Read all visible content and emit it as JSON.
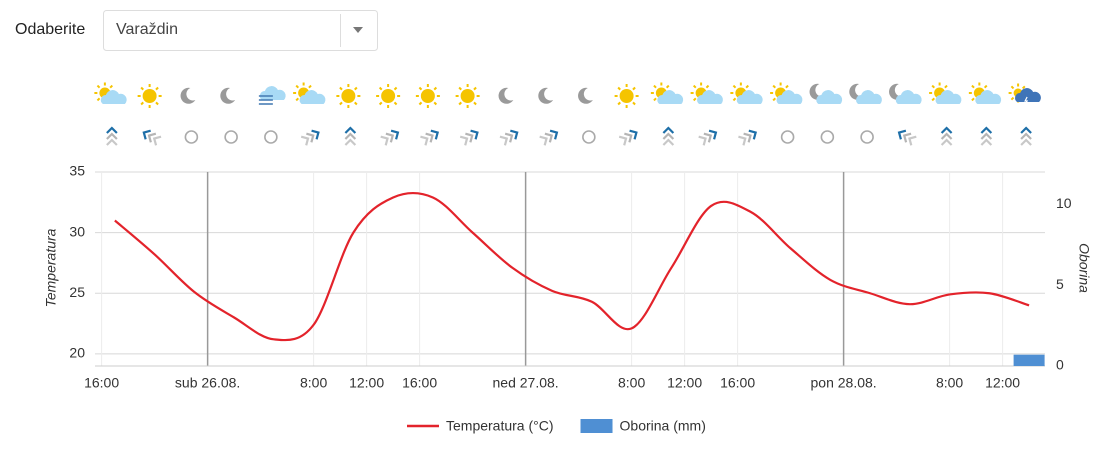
{
  "header": {
    "label": "Odaberite",
    "selected": "Varaždin"
  },
  "chart_data": {
    "type": "line",
    "x": [
      17,
      20,
      23,
      26,
      29,
      32,
      35,
      38,
      41,
      44,
      47,
      50,
      53,
      56,
      59,
      62,
      65,
      68,
      71,
      74,
      77,
      80,
      83,
      86
    ],
    "xlim": [
      15.5,
      87.2
    ],
    "xticks": [
      {
        "value": 16,
        "label": "16:00"
      },
      {
        "value": 24,
        "label": "sub 26.08."
      },
      {
        "value": 32,
        "label": "8:00"
      },
      {
        "value": 36,
        "label": "12:00"
      },
      {
        "value": 40,
        "label": "16:00"
      },
      {
        "value": 48,
        "label": "ned 27.08."
      },
      {
        "value": 56,
        "label": "8:00"
      },
      {
        "value": 60,
        "label": "12:00"
      },
      {
        "value": 64,
        "label": "16:00"
      },
      {
        "value": 72,
        "label": "pon 28.08."
      },
      {
        "value": 80,
        "label": "8:00"
      },
      {
        "value": 84,
        "label": "12:00"
      }
    ],
    "ylabel": "Temperatura",
    "y2label": "Oborina",
    "ylim": [
      19,
      35
    ],
    "yticks": [
      20,
      25,
      30,
      35
    ],
    "y2lim": [
      0,
      12
    ],
    "y2ticks": [
      0,
      5,
      10
    ],
    "grid": true,
    "series": [
      {
        "name": "Temperatura (°C)",
        "type": "line",
        "color": "#e3232b",
        "values": [
          31.0,
          28.2,
          25.1,
          23.0,
          21.2,
          22.4,
          30.0,
          32.9,
          32.9,
          30.0,
          27.1,
          25.2,
          24.3,
          22.1,
          27.1,
          32.2,
          31.7,
          28.7,
          26.1,
          25.0,
          24.1,
          24.9,
          25.0,
          24.0
        ]
      },
      {
        "name": "Oborina (mm)",
        "type": "bar",
        "axis": "y2",
        "color": "#4f8fd3",
        "values": [
          0,
          0,
          0,
          0,
          0,
          0,
          0,
          0,
          0,
          0,
          0,
          0,
          0,
          0,
          0,
          0,
          0,
          0,
          0,
          0,
          0,
          0,
          0,
          0.7
        ]
      }
    ]
  }
}
